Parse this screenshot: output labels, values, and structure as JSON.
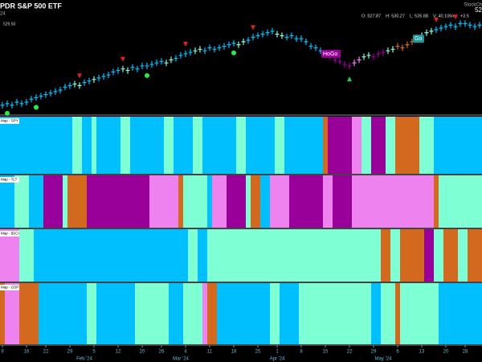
{
  "chart_data": {
    "type": "gonogo",
    "title": "PDR S&P 500 ETF",
    "subtitle": "24",
    "brand": "StockCh",
    "last_label": "52",
    "ohlc_text": [
      "O: 527.87",
      "H: 530.27",
      "L: 526.88",
      "V: 40.106m",
      "+3.5"
    ],
    "y_label": "529.50",
    "ylim": [
      470,
      535
    ],
    "values": [
      476,
      477,
      476,
      478,
      477,
      478,
      480,
      481,
      482,
      483,
      484,
      485,
      486,
      488,
      489,
      490,
      489,
      491,
      492,
      493,
      494,
      495,
      496,
      498,
      499,
      500,
      499,
      501,
      500,
      502,
      502,
      503,
      504,
      505,
      504,
      506,
      507,
      509,
      510,
      511,
      512,
      513,
      512,
      514,
      513,
      514,
      515,
      516,
      517,
      516,
      518,
      519,
      521,
      522,
      523,
      524,
      525,
      523,
      522,
      521,
      522,
      520,
      520,
      518,
      515,
      514,
      512,
      510,
      508,
      506,
      505,
      503,
      502,
      504,
      506,
      508,
      509,
      508,
      510,
      511,
      512,
      513,
      515,
      514,
      516,
      518,
      520,
      522,
      524,
      525,
      526,
      527,
      528,
      529,
      528,
      530,
      530,
      529,
      528,
      529
    ],
    "down_triangles": [
      16,
      25,
      38,
      52,
      90,
      94
    ],
    "up_triangles": [
      72
    ],
    "dots": [
      1,
      7,
      30,
      48
    ],
    "flags": [
      {
        "bar": 67,
        "label": "HoGo",
        "color": "#990099"
      },
      {
        "bar": 86,
        "label": "Go",
        "color": "#1a9a9a"
      }
    ],
    "colors": {
      "blue": "#00bfff",
      "aqua": "#7fffd4",
      "purple": "#990099",
      "pink": "#ee82ee",
      "orange": "#d2691e"
    },
    "panels": [
      {
        "label": "Map - SPY",
        "segments": [
          [
            "blue",
            15
          ],
          [
            "aqua",
            2
          ],
          [
            "blue",
            2
          ],
          [
            "aqua",
            1
          ],
          [
            "blue",
            5
          ],
          [
            "aqua",
            2
          ],
          [
            "blue",
            7
          ],
          [
            "aqua",
            2
          ],
          [
            "blue",
            4
          ],
          [
            "aqua",
            2
          ],
          [
            "blue",
            7
          ],
          [
            "aqua",
            2
          ],
          [
            "blue",
            6
          ],
          [
            "aqua",
            2
          ],
          [
            "blue",
            8
          ],
          [
            "orange",
            1
          ],
          [
            "purple",
            5
          ],
          [
            "pink",
            2
          ],
          [
            "aqua",
            2
          ],
          [
            "purple",
            3
          ],
          [
            "aqua",
            2
          ],
          [
            "orange",
            5
          ],
          [
            "aqua",
            3
          ],
          [
            "blue",
            10
          ]
        ]
      },
      {
        "label": "Map - TLT",
        "segments": [
          [
            "blue",
            3
          ],
          [
            "aqua",
            3
          ],
          [
            "blue",
            3
          ],
          [
            "purple",
            4
          ],
          [
            "aqua",
            1
          ],
          [
            "orange",
            4
          ],
          [
            "purple",
            13
          ],
          [
            "pink",
            6
          ],
          [
            "orange",
            1
          ],
          [
            "aqua",
            5
          ],
          [
            "blue",
            1
          ],
          [
            "pink",
            3
          ],
          [
            "purple",
            4
          ],
          [
            "aqua",
            1
          ],
          [
            "orange",
            2
          ],
          [
            "blue",
            2
          ],
          [
            "pink",
            4
          ],
          [
            "purple",
            7
          ],
          [
            "pink",
            2
          ],
          [
            "purple",
            4
          ],
          [
            "pink",
            17
          ],
          [
            "orange",
            1
          ],
          [
            "aqua",
            9
          ]
        ]
      },
      {
        "label": "Map - $SCI",
        "segments": [
          [
            "pink",
            4
          ],
          [
            "aqua",
            3
          ],
          [
            "blue",
            32
          ],
          [
            "aqua",
            2
          ],
          [
            "blue",
            2
          ],
          [
            "aqua",
            36
          ],
          [
            "orange",
            2
          ],
          [
            "aqua",
            2
          ],
          [
            "orange",
            5
          ],
          [
            "purple",
            2
          ],
          [
            "aqua",
            2
          ],
          [
            "orange",
            3
          ],
          [
            "aqua",
            2
          ],
          [
            "orange",
            3
          ]
        ]
      },
      {
        "label": "Map - GSP",
        "segments": [
          [
            "orange",
            1
          ],
          [
            "pink",
            3
          ],
          [
            "orange",
            4
          ],
          [
            "blue",
            10
          ],
          [
            "aqua",
            2
          ],
          [
            "blue",
            8
          ],
          [
            "aqua",
            7
          ],
          [
            "blue",
            3
          ],
          [
            "aqua",
            4
          ],
          [
            "pink",
            1
          ],
          [
            "orange",
            2
          ],
          [
            "blue",
            11
          ],
          [
            "aqua",
            2
          ],
          [
            "blue",
            4
          ],
          [
            "aqua",
            15
          ],
          [
            "blue",
            2
          ],
          [
            "aqua",
            3
          ],
          [
            "orange",
            1
          ],
          [
            "aqua",
            8
          ],
          [
            "blue",
            9
          ]
        ]
      }
    ],
    "xticks": [
      {
        "value": 0,
        "label": "9"
      },
      {
        "value": 5,
        "label": "16"
      },
      {
        "value": 9,
        "label": "22"
      },
      {
        "value": 14,
        "label": "29"
      },
      {
        "value": 19,
        "label": "5"
      },
      {
        "value": 24,
        "label": "12"
      },
      {
        "value": 29,
        "label": "20"
      },
      {
        "value": 33,
        "label": "26"
      },
      {
        "value": 38,
        "label": "4"
      },
      {
        "value": 43,
        "label": "11"
      },
      {
        "value": 48,
        "label": "18"
      },
      {
        "value": 53,
        "label": "25"
      },
      {
        "value": 57,
        "label": "1"
      },
      {
        "value": 62,
        "label": "8"
      },
      {
        "value": 67,
        "label": "15"
      },
      {
        "value": 72,
        "label": "22"
      },
      {
        "value": 77,
        "label": "29"
      },
      {
        "value": 82,
        "label": "6"
      },
      {
        "value": 87,
        "label": "13"
      },
      {
        "value": 92,
        "label": "20"
      },
      {
        "value": 96,
        "label": "28"
      }
    ],
    "months": [
      {
        "value": 17,
        "label": "Feb '24"
      },
      {
        "value": 37,
        "label": "Mar '24"
      },
      {
        "value": 57,
        "label": "Apr '24"
      },
      {
        "value": 79,
        "label": "May '24"
      }
    ]
  }
}
